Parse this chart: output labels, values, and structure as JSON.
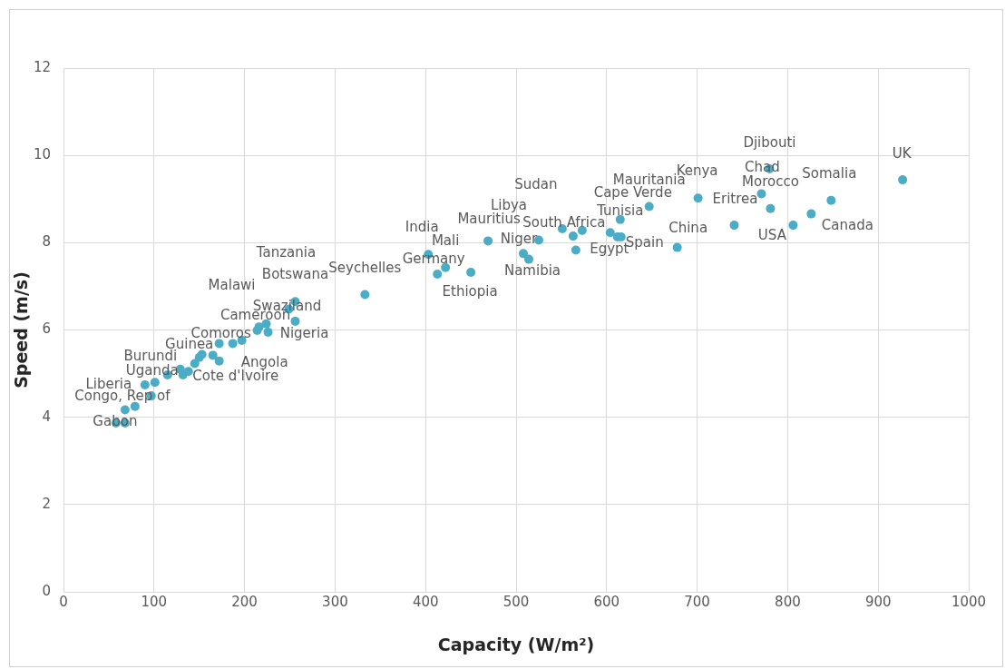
{
  "chart_data": {
    "type": "scatter",
    "xlabel": "Capacity (W/m²)",
    "ylabel": "Speed (m/s)",
    "xlim": [
      0,
      1000
    ],
    "xticks": [
      0,
      100,
      200,
      300,
      400,
      500,
      600,
      700,
      800,
      900,
      1000
    ],
    "ylim": [
      0,
      12
    ],
    "yticks": [
      0,
      2,
      4,
      6,
      8,
      10,
      12
    ],
    "grid": true,
    "legend": false,
    "marker": "circle",
    "series": [
      {
        "color": "#4bacc6",
        "x": [
          58,
          68,
          68,
          79,
          90,
          97,
          101,
          115,
          129,
          132,
          138,
          145,
          150,
          153,
          165,
          172,
          172,
          187,
          197,
          214,
          216,
          224,
          226,
          249,
          256,
          256,
          333,
          403,
          413,
          422,
          450,
          469,
          508,
          514,
          525,
          551,
          563,
          573,
          566,
          604,
          612,
          616,
          615,
          647,
          678,
          701,
          741,
          771,
          780,
          781,
          806,
          826,
          848,
          927
        ],
        "values": [
          3.87,
          3.87,
          4.17,
          4.25,
          4.74,
          4.49,
          4.8,
          4.97,
          5.1,
          4.97,
          5.05,
          5.23,
          5.37,
          5.44,
          5.42,
          5.29,
          5.69,
          5.69,
          5.76,
          5.99,
          6.07,
          6.14,
          5.95,
          6.48,
          6.65,
          6.2,
          6.81,
          7.73,
          7.28,
          7.43,
          7.32,
          8.04,
          7.75,
          7.62,
          8.06,
          8.32,
          8.15,
          8.28,
          7.83,
          8.23,
          8.13,
          8.13,
          8.53,
          8.83,
          7.89,
          9.02,
          8.4,
          9.12,
          9.69,
          8.78,
          8.4,
          8.66,
          8.97,
          9.44
        ],
        "value_labels": [
          "Gabon",
          null,
          "Congo, Rep of",
          null,
          "Liberia",
          null,
          null,
          "Uganda",
          "Burundi",
          "Cote d'Ivoire",
          null,
          null,
          null,
          "Guinea",
          null,
          "Angola",
          "Comoros",
          null,
          null,
          "Malawi",
          "Cameroon",
          "Swaziland",
          null,
          "Botswana",
          "Tanzania",
          "Nigeria",
          "Seychelles",
          "India",
          "Germany",
          "Mali",
          "Ethiopia",
          "Mauritius",
          "Libya",
          "Namibia",
          "Niger",
          "Sudan",
          null,
          "South Africa",
          "Egypt",
          null,
          "Tunisia",
          "Spain",
          "Cape Verde",
          "Mauritania",
          "China",
          "Kenya",
          "Eritrea",
          "Chad",
          "Djibouti",
          "Morocco",
          "USA",
          "Canada",
          "Somalia",
          "UK"
        ]
      }
    ]
  }
}
